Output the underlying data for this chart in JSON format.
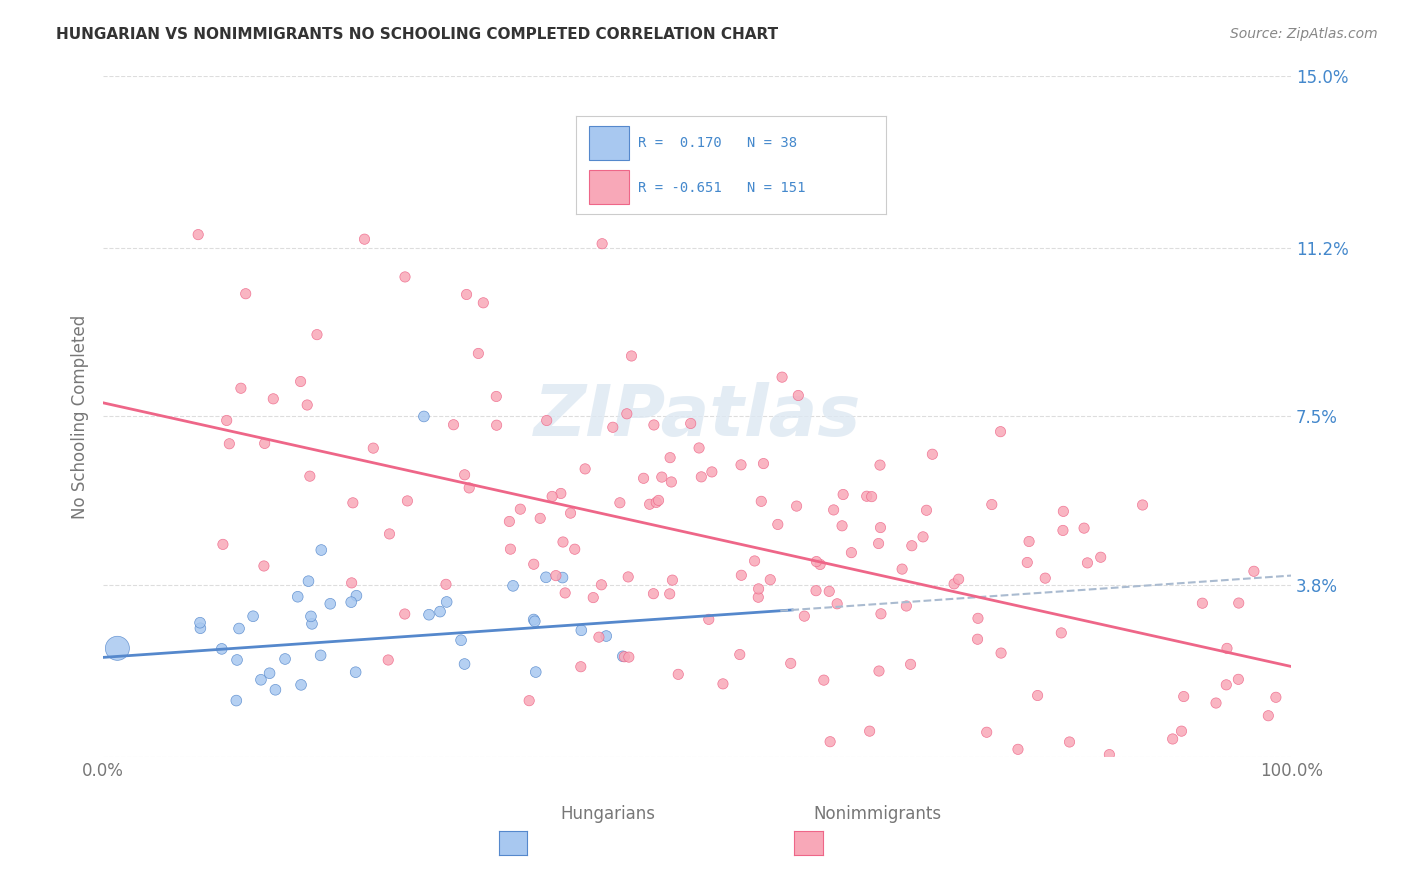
{
  "title": "HUNGARIAN VS NONIMMIGRANTS NO SCHOOLING COMPLETED CORRELATION CHART",
  "source": "Source: ZipAtlas.com",
  "ylabel": "No Schooling Completed",
  "xlim": [
    0,
    1
  ],
  "ylim": [
    0,
    0.15
  ],
  "yticks": [
    0,
    0.038,
    0.075,
    0.112,
    0.15
  ],
  "ytick_labels": [
    "",
    "3.8%",
    "7.5%",
    "11.2%",
    "15.0%"
  ],
  "xticks": [
    0.0,
    0.2,
    0.4,
    0.6,
    0.8,
    1.0
  ],
  "xtick_labels": [
    "0.0%",
    "",
    "",
    "",
    "",
    "100.0%"
  ],
  "background_color": "#ffffff",
  "watermark_text": "ZIPatlas",
  "blue_color": "#a8c8f0",
  "pink_color": "#f8a8b8",
  "blue_line_color": "#5588cc",
  "pink_line_color": "#ee6688",
  "blue_dash_color": "#aabbd0",
  "grid_color": "#dddddd",
  "tick_label_color_blue": "#4488cc",
  "tick_label_color_gray": "#777777",
  "r_blue": 0.17,
  "n_blue": 38,
  "r_pink": -0.651,
  "n_pink": 151,
  "blue_intercept": 0.022,
  "blue_slope": 0.018,
  "pink_intercept": 0.078,
  "pink_slope": -0.058,
  "legend_r1": "R =  0.170   N = 38",
  "legend_r2": "R = -0.651   N = 151"
}
